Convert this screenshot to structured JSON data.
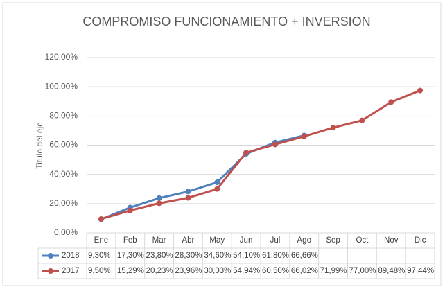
{
  "chart_data": {
    "type": "line",
    "title": "COMPROMISO FUNCIONAMIENTO + INVERSION",
    "y_label": "Titulo del eje",
    "categories": [
      "Ene",
      "Feb",
      "Mar",
      "Abr",
      "May",
      "Jun",
      "Jul",
      "Ago",
      "Sep",
      "Oct",
      "Nov",
      "Dic"
    ],
    "series": [
      {
        "name": "2018",
        "color": "#4f81bd",
        "values": [
          9.3,
          17.3,
          23.8,
          28.3,
          34.6,
          54.1,
          61.8,
          66.66,
          null,
          null,
          null,
          null
        ],
        "value_labels": [
          "9,30%",
          "17,30%",
          "23,80%",
          "28,30%",
          "34,60%",
          "54,10%",
          "61,80%",
          "66,66%",
          null,
          null,
          null,
          null
        ]
      },
      {
        "name": "2017",
        "color": "#c0504d",
        "values": [
          9.5,
          15.29,
          20.23,
          23.96,
          30.03,
          54.94,
          60.5,
          66.02,
          71.99,
          77.0,
          89.48,
          97.44
        ],
        "value_labels": [
          "9,50%",
          "15,29%",
          "20,23%",
          "23,96%",
          "30,03%",
          "54,94%",
          "60,50%",
          "66,02%",
          "71,99%",
          "77,00%",
          "89,48%",
          "97,44%"
        ]
      }
    ],
    "ylim": [
      0,
      120
    ],
    "yticks": [
      {
        "value": 0,
        "label": "0,00%"
      },
      {
        "value": 20,
        "label": "20,00%"
      },
      {
        "value": 40,
        "label": "40,00%"
      },
      {
        "value": 60,
        "label": "60,00%"
      },
      {
        "value": 80,
        "label": "80,00%"
      },
      {
        "value": 100,
        "label": "100,00%"
      },
      {
        "value": 120,
        "label": "120,00%"
      }
    ],
    "grid": true
  }
}
